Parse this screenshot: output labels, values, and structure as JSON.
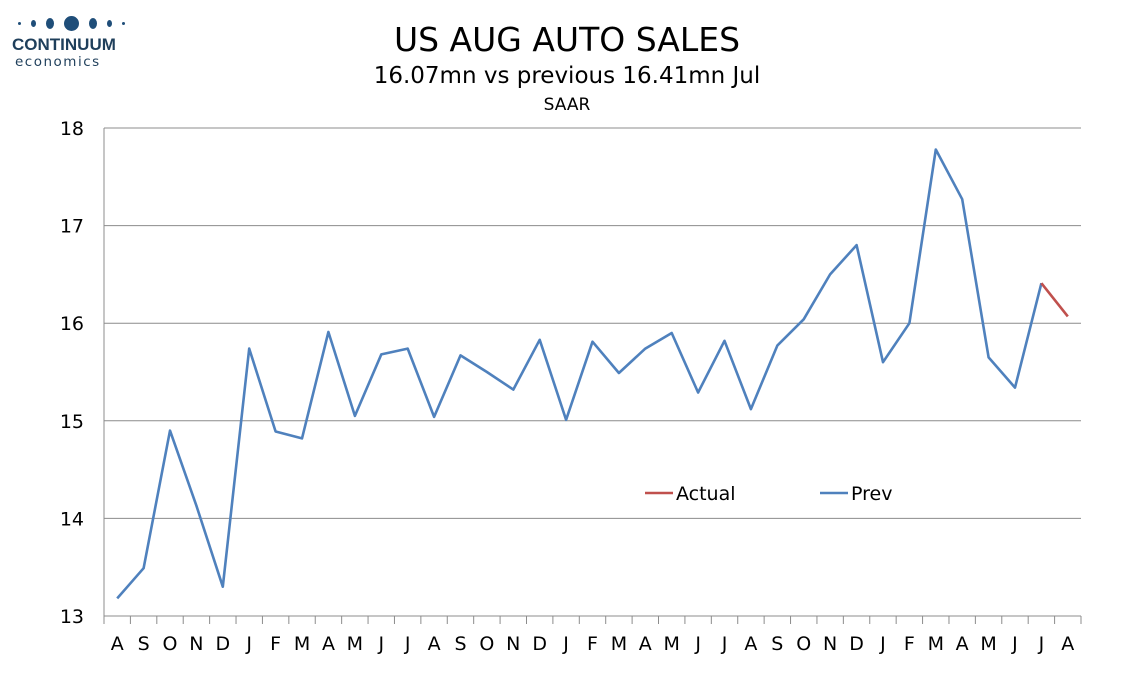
{
  "logo": {
    "name": "CONTINUUM",
    "sub": "economics"
  },
  "chart_data": {
    "type": "line",
    "title": "US AUG AUTO SALES",
    "subtitle": "16.07mn vs previous 16.41mn Jul",
    "subtitle2": "SAAR",
    "x": [
      "A",
      "S",
      "O",
      "N",
      "D",
      "J",
      "F",
      "M",
      "A",
      "M",
      "J",
      "J",
      "A",
      "S",
      "O",
      "N",
      "D",
      "J",
      "F",
      "M",
      "A",
      "M",
      "J",
      "J",
      "A",
      "S",
      "O",
      "N",
      "D",
      "J",
      "F",
      "M",
      "A",
      "M",
      "J",
      "J",
      "A"
    ],
    "series": [
      {
        "name": "Actual",
        "color": "#c0504d",
        "values": [
          null,
          null,
          null,
          null,
          null,
          null,
          null,
          null,
          null,
          null,
          null,
          null,
          null,
          null,
          null,
          null,
          null,
          null,
          null,
          null,
          null,
          null,
          null,
          null,
          null,
          null,
          null,
          null,
          null,
          null,
          null,
          null,
          null,
          null,
          null,
          16.41,
          16.07
        ]
      },
      {
        "name": "Prev",
        "color": "#4f81bd",
        "values": [
          13.18,
          13.49,
          14.9,
          14.13,
          13.3,
          15.74,
          14.89,
          14.82,
          15.91,
          15.05,
          15.68,
          15.74,
          15.04,
          15.67,
          15.5,
          15.32,
          15.83,
          15.01,
          15.81,
          15.49,
          15.74,
          15.9,
          15.29,
          15.82,
          15.12,
          15.77,
          16.04,
          16.5,
          16.8,
          15.6,
          16.0,
          17.78,
          17.27,
          15.65,
          15.34,
          16.41,
          null
        ]
      }
    ],
    "ylim": [
      13,
      18
    ],
    "yticks": [
      "13",
      "14",
      "15",
      "16",
      "17",
      "18"
    ],
    "grid": true,
    "legend": "center-right"
  }
}
